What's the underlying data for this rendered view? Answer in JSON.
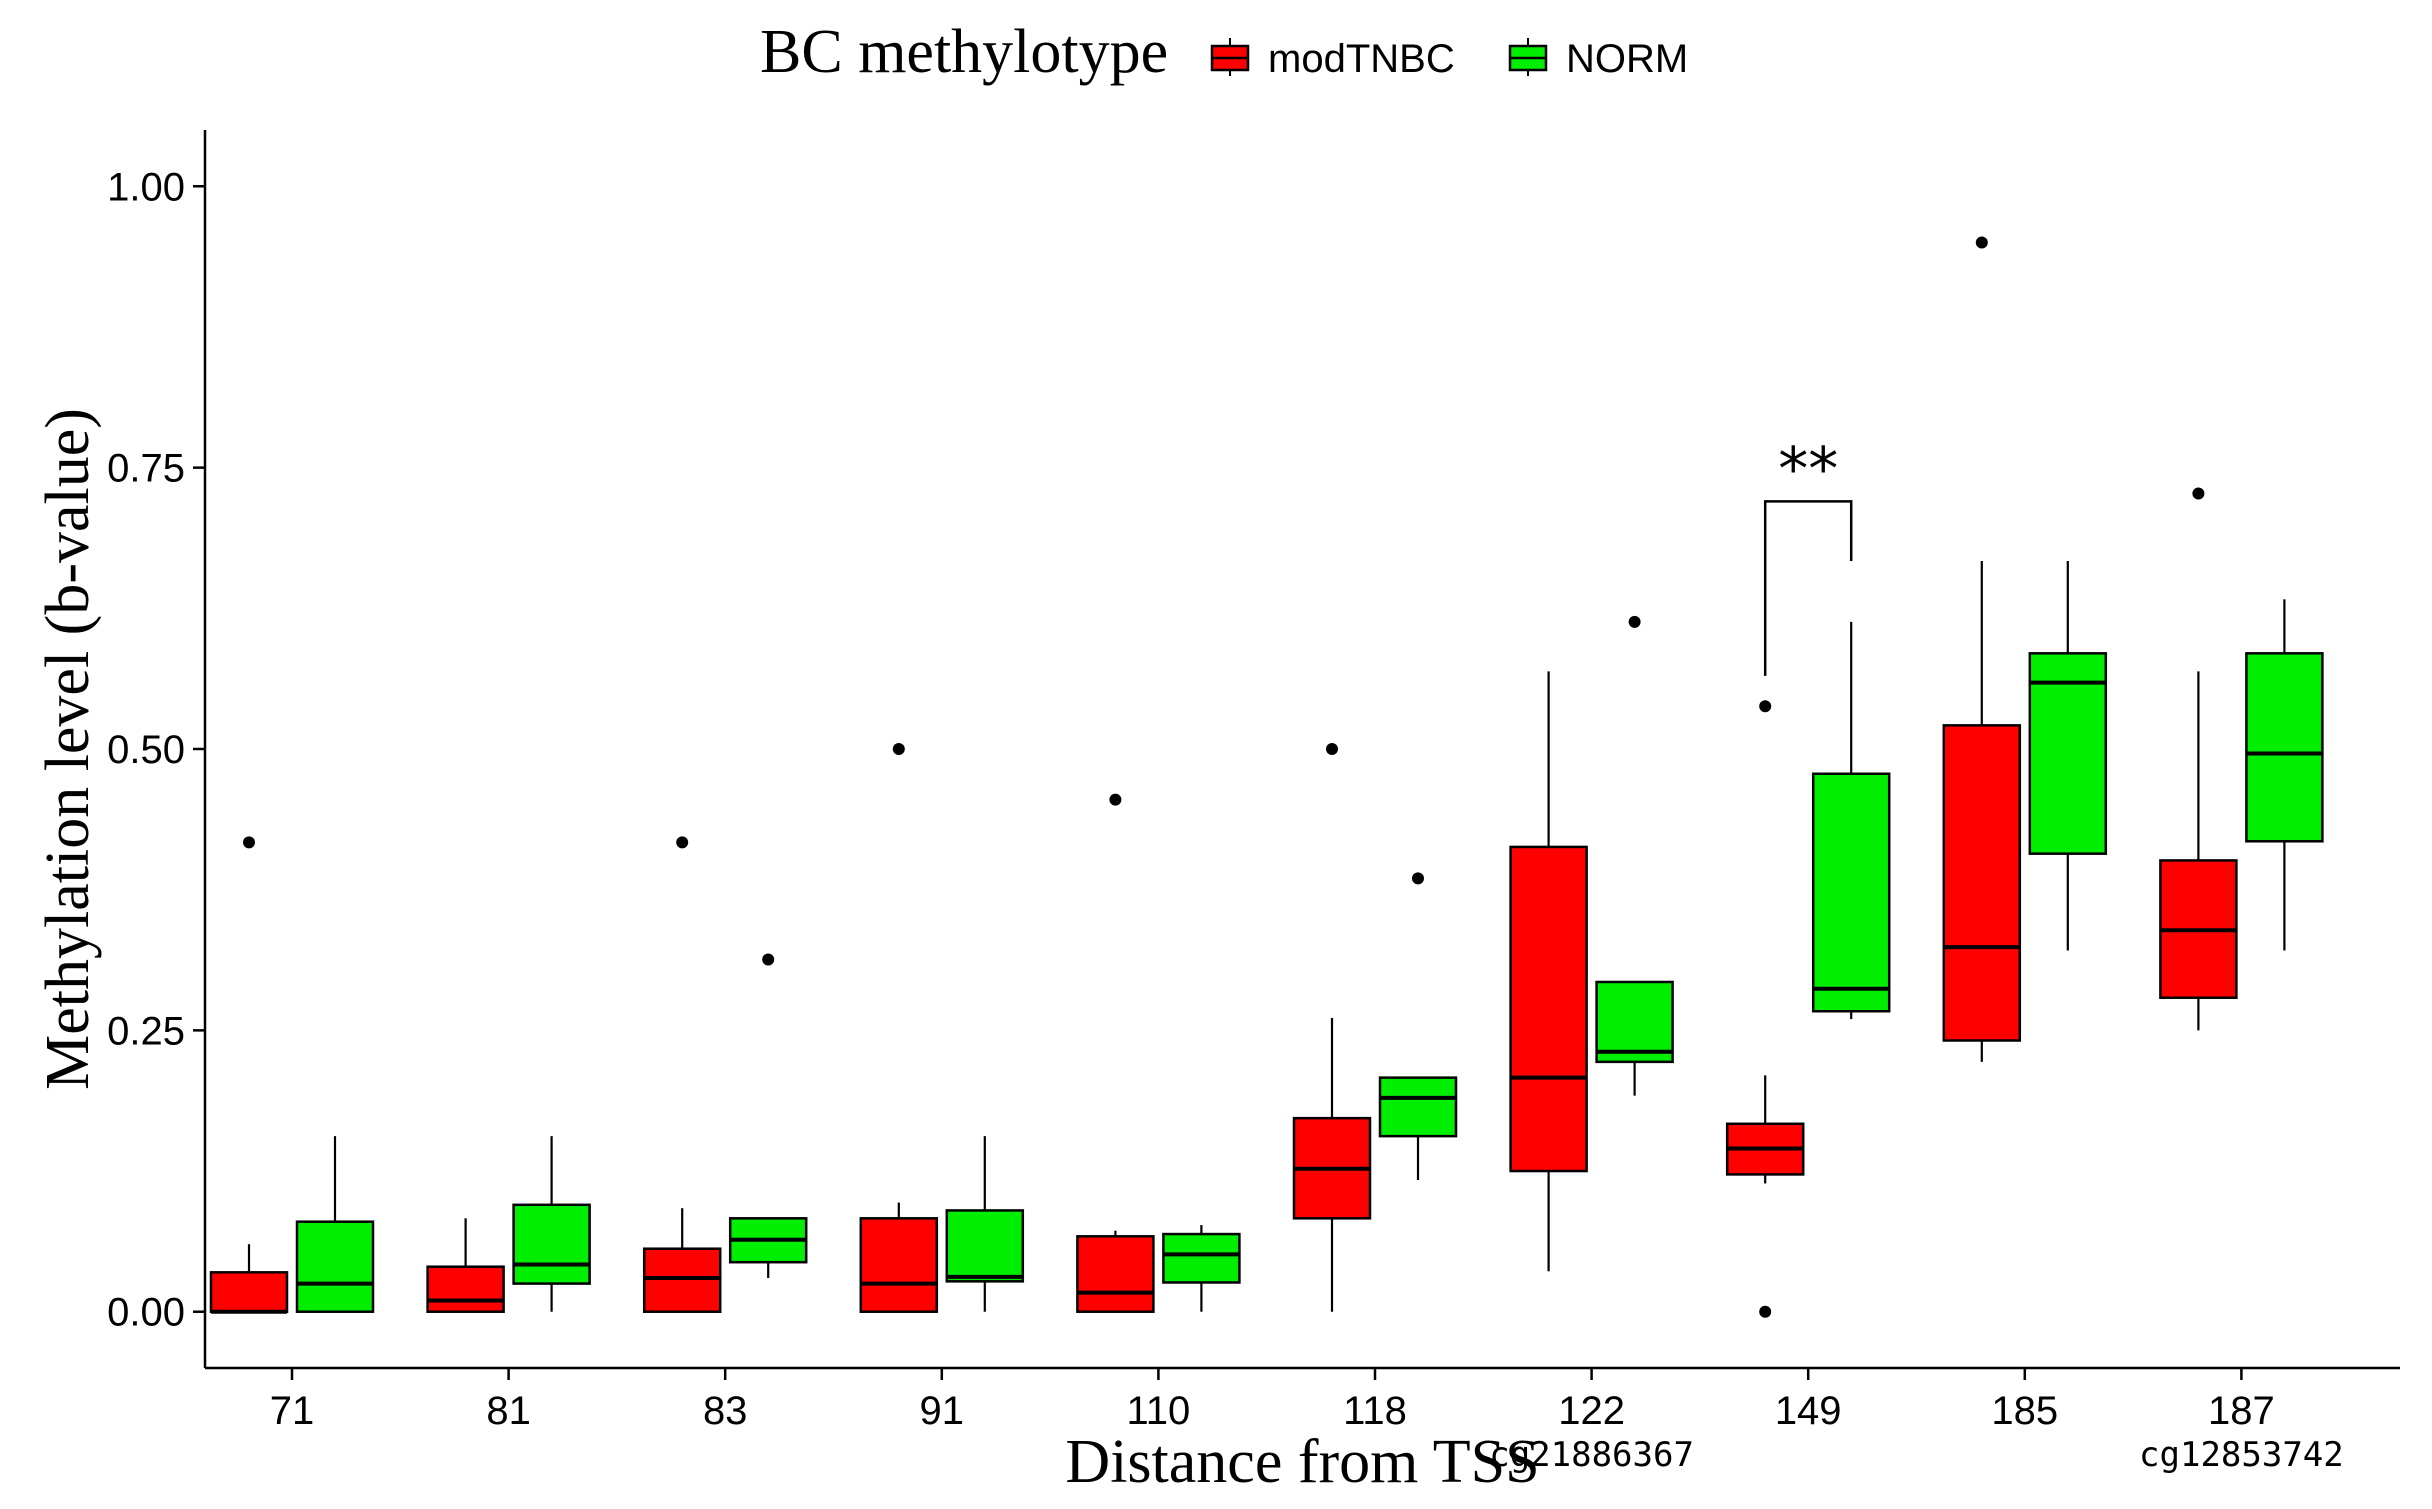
{
  "chart_data": {
    "type": "box",
    "title": "",
    "xlabel": "Distance from TSS",
    "ylabel": "Methylation level (b-value)",
    "ylim": [
      -0.05,
      1.05
    ],
    "yticks": [
      "0.00",
      "0.25",
      "0.50",
      "0.75",
      "1.00"
    ],
    "ytick_values": [
      0,
      0.25,
      0.5,
      0.75,
      1.0
    ],
    "grid": false,
    "legend": {
      "title": "BC methylotype",
      "position": "top",
      "entries": [
        {
          "name": "modTNBC",
          "color": "#ff0000"
        },
        {
          "name": "NORM",
          "color": "#00ee00"
        }
      ]
    },
    "categories": [
      "71",
      "81",
      "83",
      "91",
      "110",
      "118",
      "122",
      "149",
      "185",
      "187"
    ],
    "probe_labels": [
      {
        "category": "122",
        "text": "cg21886367"
      },
      {
        "category": "187",
        "text": "cg12853742"
      }
    ],
    "series": [
      {
        "name": "modTNBC",
        "color": "#ff0000",
        "boxes": [
          {
            "lower": 0.0,
            "q1": 0.0,
            "median": 0.0,
            "q3": 0.035,
            "upper": 0.06,
            "outliers": [
              0.417
            ]
          },
          {
            "lower": 0.0,
            "q1": 0.0,
            "median": 0.01,
            "q3": 0.04,
            "upper": 0.083,
            "outliers": []
          },
          {
            "lower": 0.0,
            "q1": 0.0,
            "median": 0.03,
            "q3": 0.056,
            "upper": 0.092,
            "outliers": [
              0.417
            ]
          },
          {
            "lower": 0.0,
            "q1": 0.0,
            "median": 0.025,
            "q3": 0.083,
            "upper": 0.097,
            "outliers": [
              0.5
            ]
          },
          {
            "lower": 0.0,
            "q1": 0.0,
            "median": 0.017,
            "q3": 0.067,
            "upper": 0.072,
            "outliers": [
              0.455
            ]
          },
          {
            "lower": 0.0,
            "q1": 0.083,
            "median": 0.127,
            "q3": 0.172,
            "upper": 0.261,
            "outliers": [
              0.5
            ]
          },
          {
            "lower": 0.036,
            "q1": 0.125,
            "median": 0.208,
            "q3": 0.413,
            "upper": 0.569,
            "outliers": []
          },
          {
            "lower": 0.114,
            "q1": 0.122,
            "median": 0.145,
            "q3": 0.167,
            "upper": 0.21,
            "outliers": [
              0.538,
              0.0
            ]
          },
          {
            "lower": 0.222,
            "q1": 0.241,
            "median": 0.324,
            "q3": 0.521,
            "upper": 0.667,
            "outliers": [
              0.95
            ]
          },
          {
            "lower": 0.25,
            "q1": 0.279,
            "median": 0.339,
            "q3": 0.401,
            "upper": 0.569,
            "outliers": [
              0.727
            ]
          }
        ]
      },
      {
        "name": "NORM",
        "color": "#00ee00",
        "boxes": [
          {
            "lower": 0.0,
            "q1": 0.0,
            "median": 0.025,
            "q3": 0.08,
            "upper": 0.156,
            "outliers": []
          },
          {
            "lower": 0.0,
            "q1": 0.025,
            "median": 0.042,
            "q3": 0.095,
            "upper": 0.156,
            "outliers": []
          },
          {
            "lower": 0.03,
            "q1": 0.044,
            "median": 0.064,
            "q3": 0.083,
            "upper": 0.083,
            "outliers": [
              0.313
            ]
          },
          {
            "lower": 0.0,
            "q1": 0.027,
            "median": 0.031,
            "q3": 0.09,
            "upper": 0.156,
            "outliers": []
          },
          {
            "lower": 0.0,
            "q1": 0.026,
            "median": 0.051,
            "q3": 0.069,
            "upper": 0.077,
            "outliers": []
          },
          {
            "lower": 0.117,
            "q1": 0.156,
            "median": 0.19,
            "q3": 0.208,
            "upper": 0.208,
            "outliers": [
              0.385
            ]
          },
          {
            "lower": 0.192,
            "q1": 0.222,
            "median": 0.231,
            "q3": 0.293,
            "upper": 0.293,
            "outliers": [
              0.613
            ]
          },
          {
            "lower": 0.26,
            "q1": 0.267,
            "median": 0.287,
            "q3": 0.478,
            "upper": 0.613,
            "outliers": []
          },
          {
            "lower": 0.321,
            "q1": 0.407,
            "median": 0.559,
            "q3": 0.585,
            "upper": 0.667,
            "outliers": []
          },
          {
            "lower": 0.321,
            "q1": 0.418,
            "median": 0.496,
            "q3": 0.585,
            "upper": 0.633,
            "outliers": []
          }
        ]
      }
    ],
    "annotations": [
      {
        "text": "**",
        "category": "149",
        "left_y": 0.565,
        "right_y": 0.667,
        "top_y": 0.72
      }
    ]
  }
}
